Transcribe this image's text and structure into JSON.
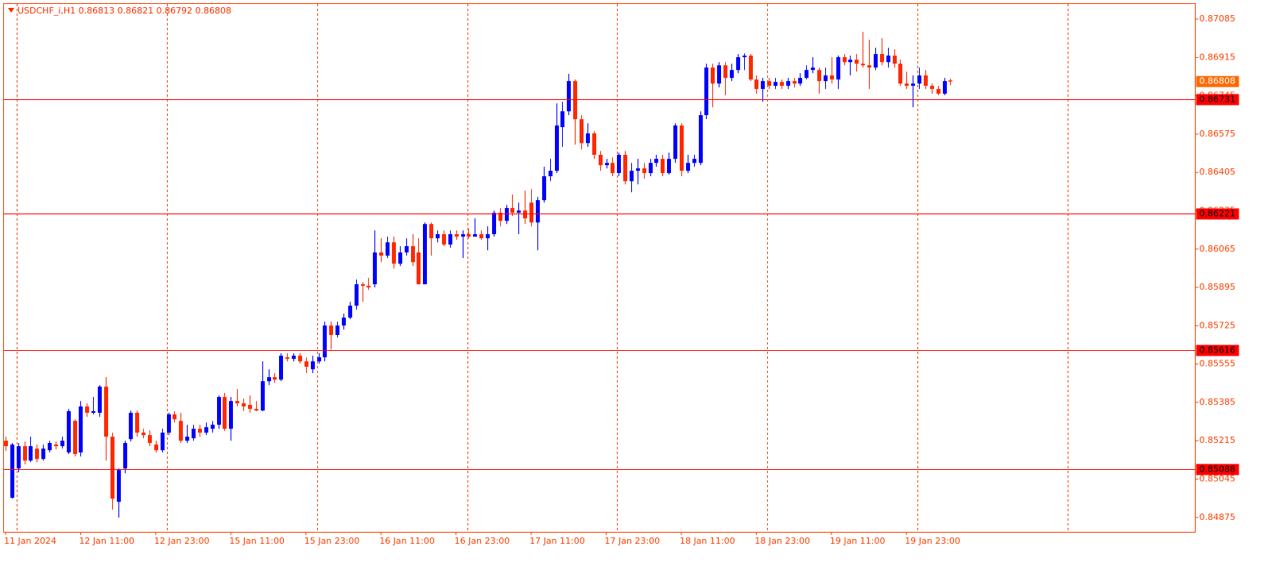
{
  "chart_data": {
    "type": "candlestick",
    "title": "USDCHF_i,H1  0.86813 0.86821 0.86792 0.86808",
    "up_color": "#0000ff",
    "down_color": "#ff2a00",
    "line_color": "#ff0000",
    "ylim": [
      0.84811,
      0.87152
    ],
    "yticks": [
      0.87085,
      0.86915,
      0.86745,
      0.86575,
      0.86405,
      0.86235,
      0.86065,
      0.85895,
      0.85725,
      0.85555,
      0.85385,
      0.85215,
      0.85045,
      0.84875
    ],
    "hlines": [
      0.86731,
      0.86221,
      0.85616,
      0.85088
    ],
    "last_price": 0.86808,
    "categories": [
      "11 Jan 2024",
      null,
      null,
      null,
      null,
      null,
      null,
      null,
      null,
      null,
      null,
      null,
      "12 Jan 11:00",
      null,
      null,
      null,
      null,
      null,
      null,
      null,
      null,
      null,
      null,
      null,
      "12 Jan 23:00",
      null,
      null,
      null,
      null,
      null,
      null,
      null,
      null,
      null,
      null,
      null,
      "15 Jan 11:00",
      null,
      null,
      null,
      null,
      null,
      null,
      null,
      null,
      null,
      null,
      null,
      "15 Jan 23:00",
      null,
      null,
      null,
      null,
      null,
      null,
      null,
      null,
      null,
      null,
      null,
      "16 Jan 11:00",
      null,
      null,
      null,
      null,
      null,
      null,
      null,
      null,
      null,
      null,
      null,
      "16 Jan 23:00",
      null,
      null,
      null,
      null,
      null,
      null,
      null,
      null,
      null,
      null,
      null,
      "17 Jan 11:00",
      null,
      null,
      null,
      null,
      null,
      null,
      null,
      null,
      null,
      null,
      null,
      "17 Jan 23:00",
      null,
      null,
      null,
      null,
      null,
      null,
      null,
      null,
      null,
      null,
      null,
      "18 Jan 11:00",
      null,
      null,
      null,
      null,
      null,
      null,
      null,
      null,
      null,
      null,
      null,
      "18 Jan 23:00",
      null,
      null,
      null,
      null,
      null,
      null,
      null,
      null,
      null,
      null,
      null,
      "19 Jan 11:00",
      null,
      null,
      null,
      null,
      null,
      null,
      null,
      null,
      null,
      null,
      null,
      "19 Jan 23:00",
      null,
      null,
      null,
      null,
      null,
      null,
      null
    ],
    "ohlc": [
      [
        0.85215,
        0.85233,
        0.8517,
        0.85191
      ],
      [
        0.84962,
        0.85205,
        0.84958,
        0.85198
      ],
      [
        0.85092,
        0.85205,
        0.85075,
        0.85191
      ],
      [
        0.85191,
        0.85212,
        0.8511,
        0.85127
      ],
      [
        0.85127,
        0.85233,
        0.8512,
        0.85191
      ],
      [
        0.8518,
        0.85198,
        0.8512,
        0.85134
      ],
      [
        0.85134,
        0.85198,
        0.85127,
        0.8518
      ],
      [
        0.85173,
        0.85215,
        0.85163,
        0.85205
      ],
      [
        0.85198,
        0.85212,
        0.85177,
        0.85191
      ],
      [
        0.85191,
        0.85233,
        0.8518,
        0.85215
      ],
      [
        0.85163,
        0.85356,
        0.85156,
        0.85346
      ],
      [
        0.85303,
        0.8531,
        0.85145,
        0.85156
      ],
      [
        0.85163,
        0.85391,
        0.85145,
        0.85367
      ],
      [
        0.85367,
        0.85381,
        0.85321,
        0.85339
      ],
      [
        0.85339,
        0.85409,
        0.85332,
        0.85346
      ],
      [
        0.85339,
        0.85462,
        0.85321,
        0.85455
      ],
      [
        0.85455,
        0.85497,
        0.85127,
        0.85233
      ],
      [
        0.85233,
        0.85251,
        0.84909,
        0.84958
      ],
      [
        0.84944,
        0.85092,
        0.84874,
        0.85085
      ],
      [
        0.85092,
        0.85215,
        0.85071,
        0.85205
      ],
      [
        0.85222,
        0.85349,
        0.85212,
        0.85339
      ],
      [
        0.85339,
        0.85349,
        0.85233,
        0.85251
      ],
      [
        0.85251,
        0.85268,
        0.85226,
        0.8524
      ],
      [
        0.8524,
        0.85261,
        0.85191,
        0.85205
      ],
      [
        0.85198,
        0.85215,
        0.85163,
        0.85173
      ],
      [
        0.85173,
        0.85268,
        0.85163,
        0.85251
      ],
      [
        0.85251,
        0.85339,
        0.8524,
        0.85332
      ],
      [
        0.85332,
        0.85346,
        0.85296,
        0.8531
      ],
      [
        0.85303,
        0.85339,
        0.85205,
        0.85215
      ],
      [
        0.85215,
        0.85286,
        0.85205,
        0.85233
      ],
      [
        0.85226,
        0.85286,
        0.85215,
        0.85268
      ],
      [
        0.85268,
        0.85286,
        0.85233,
        0.85251
      ],
      [
        0.85251,
        0.85296,
        0.8524,
        0.85275
      ],
      [
        0.85268,
        0.85303,
        0.85251,
        0.85286
      ],
      [
        0.85286,
        0.85416,
        0.85268,
        0.85409
      ],
      [
        0.85409,
        0.85427,
        0.85258,
        0.85268
      ],
      [
        0.85268,
        0.85409,
        0.85215,
        0.85391
      ],
      [
        0.85391,
        0.85444,
        0.85367,
        0.85381
      ],
      [
        0.85381,
        0.85402,
        0.85346,
        0.85367
      ],
      [
        0.85374,
        0.85416,
        0.85339,
        0.85356
      ],
      [
        0.85356,
        0.85391,
        0.85346,
        0.85349
      ],
      [
        0.85349,
        0.85567,
        0.85346,
        0.85479
      ],
      [
        0.85479,
        0.85532,
        0.85462,
        0.85497
      ],
      [
        0.85497,
        0.85515,
        0.85472,
        0.85486
      ],
      [
        0.85486,
        0.85603,
        0.85479,
        0.85592
      ],
      [
        0.85585,
        0.85603,
        0.85567,
        0.85578
      ],
      [
        0.85578,
        0.85603,
        0.85567,
        0.85592
      ],
      [
        0.85592,
        0.85603,
        0.85557,
        0.85567
      ],
      [
        0.85567,
        0.85585,
        0.85515,
        0.85543
      ],
      [
        0.85532,
        0.85592,
        0.85515,
        0.85567
      ],
      [
        0.85567,
        0.85603,
        0.85557,
        0.85585
      ],
      [
        0.85585,
        0.85743,
        0.85567,
        0.85726
      ],
      [
        0.85726,
        0.85743,
        0.8562,
        0.85684
      ],
      [
        0.85684,
        0.85743,
        0.85673,
        0.85726
      ],
      [
        0.85726,
        0.85779,
        0.85708,
        0.85761
      ],
      [
        0.85761,
        0.85831,
        0.85754,
        0.85814
      ],
      [
        0.85814,
        0.8593,
        0.85796,
        0.85909
      ],
      [
        0.85909,
        0.85919,
        0.85831,
        0.85902
      ],
      [
        0.85902,
        0.85937,
        0.85884,
        0.85895
      ],
      [
        0.85909,
        0.86148,
        0.85895,
        0.8605
      ],
      [
        0.8605,
        0.86113,
        0.86007,
        0.86036
      ],
      [
        0.86036,
        0.8612,
        0.86025,
        0.86095
      ],
      [
        0.86095,
        0.8612,
        0.85979,
        0.86
      ],
      [
        0.86,
        0.86078,
        0.8599,
        0.8605
      ],
      [
        0.8605,
        0.86113,
        0.86036,
        0.86078
      ],
      [
        0.86078,
        0.86131,
        0.8599,
        0.86007
      ],
      [
        0.8605,
        0.86113,
        0.85909,
        0.85909
      ],
      [
        0.85909,
        0.86183,
        0.85909,
        0.86176
      ],
      [
        0.86176,
        0.86183,
        0.86036,
        0.86113
      ],
      [
        0.86113,
        0.86148,
        0.86095,
        0.86131
      ],
      [
        0.86131,
        0.86148,
        0.86078,
        0.86085
      ],
      [
        0.86085,
        0.86148,
        0.86071,
        0.86131
      ],
      [
        0.86131,
        0.86148,
        0.86106,
        0.8612
      ],
      [
        0.8612,
        0.86148,
        0.86025,
        0.86131
      ],
      [
        0.86131,
        0.86155,
        0.86113,
        0.8612
      ],
      [
        0.8612,
        0.86201,
        0.8612,
        0.86131
      ],
      [
        0.86131,
        0.86148,
        0.86106,
        0.86113
      ],
      [
        0.86113,
        0.86166,
        0.8606,
        0.86131
      ],
      [
        0.86131,
        0.86236,
        0.8612,
        0.86226
      ],
      [
        0.86226,
        0.86247,
        0.86166,
        0.8619
      ],
      [
        0.8619,
        0.86261,
        0.86176,
        0.86247
      ],
      [
        0.86247,
        0.86307,
        0.86212,
        0.86226
      ],
      [
        0.86226,
        0.86271,
        0.86131,
        0.86236
      ],
      [
        0.86236,
        0.86324,
        0.86176,
        0.86201
      ],
      [
        0.86271,
        0.86331,
        0.86166,
        0.86183
      ],
      [
        0.86183,
        0.86296,
        0.8606,
        0.86282
      ],
      [
        0.86282,
        0.8643,
        0.86271,
        0.86388
      ],
      [
        0.86388,
        0.86465,
        0.86366,
        0.86412
      ],
      [
        0.86412,
        0.86711,
        0.86402,
        0.86613
      ],
      [
        0.86606,
        0.86718,
        0.86518,
        0.86676
      ],
      [
        0.86676,
        0.86842,
        0.86659,
        0.8681
      ],
      [
        0.8681,
        0.86817,
        0.86528,
        0.86641
      ],
      [
        0.86641,
        0.86659,
        0.86507,
        0.86535
      ],
      [
        0.86535,
        0.86623,
        0.86518,
        0.86578
      ],
      [
        0.86578,
        0.86588,
        0.86465,
        0.86483
      ],
      [
        0.86483,
        0.865,
        0.86412,
        0.86437
      ],
      [
        0.86437,
        0.86465,
        0.86423,
        0.86447
      ],
      [
        0.86447,
        0.86472,
        0.86388,
        0.86402
      ],
      [
        0.86402,
        0.86493,
        0.86388,
        0.86483
      ],
      [
        0.86483,
        0.865,
        0.86352,
        0.86366
      ],
      [
        0.86366,
        0.86447,
        0.86317,
        0.86412
      ],
      [
        0.86412,
        0.86465,
        0.86352,
        0.86423
      ],
      [
        0.86423,
        0.86447,
        0.86377,
        0.86402
      ],
      [
        0.86402,
        0.86465,
        0.86388,
        0.86447
      ],
      [
        0.86447,
        0.86483,
        0.8643,
        0.86465
      ],
      [
        0.86465,
        0.86483,
        0.86388,
        0.86402
      ],
      [
        0.86402,
        0.86493,
        0.86395,
        0.86465
      ],
      [
        0.86465,
        0.86623,
        0.86447,
        0.86613
      ],
      [
        0.86613,
        0.86623,
        0.86388,
        0.86412
      ],
      [
        0.86412,
        0.86483,
        0.86402,
        0.86447
      ],
      [
        0.86447,
        0.86483,
        0.8643,
        0.86465
      ],
      [
        0.86447,
        0.86676,
        0.86437,
        0.86659
      ],
      [
        0.86659,
        0.86887,
        0.86641,
        0.8687
      ],
      [
        0.8687,
        0.86887,
        0.86694,
        0.86799
      ],
      [
        0.86799,
        0.86894,
        0.86782,
        0.8688
      ],
      [
        0.8688,
        0.86894,
        0.86747,
        0.86824
      ],
      [
        0.86824,
        0.86887,
        0.8681,
        0.86859
      ],
      [
        0.86859,
        0.8693,
        0.86845,
        0.86916
      ],
      [
        0.86916,
        0.86933,
        0.86859,
        0.86923
      ],
      [
        0.86923,
        0.8693,
        0.8681,
        0.86817
      ],
      [
        0.86817,
        0.86835,
        0.86754,
        0.86775
      ],
      [
        0.86775,
        0.86824,
        0.86718,
        0.8681
      ],
      [
        0.8681,
        0.86824,
        0.86775,
        0.86789
      ],
      [
        0.86789,
        0.86824,
        0.86775,
        0.86806
      ],
      [
        0.86806,
        0.86817,
        0.86775,
        0.86789
      ],
      [
        0.86789,
        0.86824,
        0.86775,
        0.8681
      ],
      [
        0.8681,
        0.86824,
        0.86782,
        0.86799
      ],
      [
        0.86799,
        0.86845,
        0.86789,
        0.86824
      ],
      [
        0.86824,
        0.8688,
        0.86817,
        0.86859
      ],
      [
        0.86859,
        0.86916,
        0.86845,
        0.8687
      ],
      [
        0.86859,
        0.8687,
        0.86754,
        0.8681
      ],
      [
        0.8681,
        0.8687,
        0.86775,
        0.86835
      ],
      [
        0.86835,
        0.86916,
        0.86799,
        0.86817
      ],
      [
        0.86817,
        0.86923,
        0.86775,
        0.86916
      ],
      [
        0.86916,
        0.8693,
        0.8688,
        0.86894
      ],
      [
        0.86894,
        0.86923,
        0.86835,
        0.86905
      ],
      [
        0.86905,
        0.8693,
        0.86852,
        0.86887
      ],
      [
        0.86887,
        0.87028,
        0.8687,
        0.8688
      ],
      [
        0.8688,
        0.86993,
        0.86775,
        0.8687
      ],
      [
        0.8687,
        0.86958,
        0.86859,
        0.8693
      ],
      [
        0.8693,
        0.87,
        0.8688,
        0.86894
      ],
      [
        0.86894,
        0.86958,
        0.8687,
        0.86923
      ],
      [
        0.86923,
        0.86951,
        0.8687,
        0.86887
      ],
      [
        0.86887,
        0.86905,
        0.86789,
        0.86799
      ],
      [
        0.86799,
        0.86852,
        0.86775,
        0.86789
      ],
      [
        0.86789,
        0.86835,
        0.86694,
        0.86799
      ],
      [
        0.86799,
        0.8687,
        0.86775,
        0.86835
      ],
      [
        0.86835,
        0.86859,
        0.86775,
        0.86789
      ],
      [
        0.86789,
        0.86799,
        0.86754,
        0.86775
      ],
      [
        0.86775,
        0.86789,
        0.86747,
        0.86754
      ],
      [
        0.86754,
        0.86824,
        0.86747,
        0.8681
      ],
      [
        0.86813,
        0.86821,
        0.86792,
        0.86808
      ]
    ]
  }
}
